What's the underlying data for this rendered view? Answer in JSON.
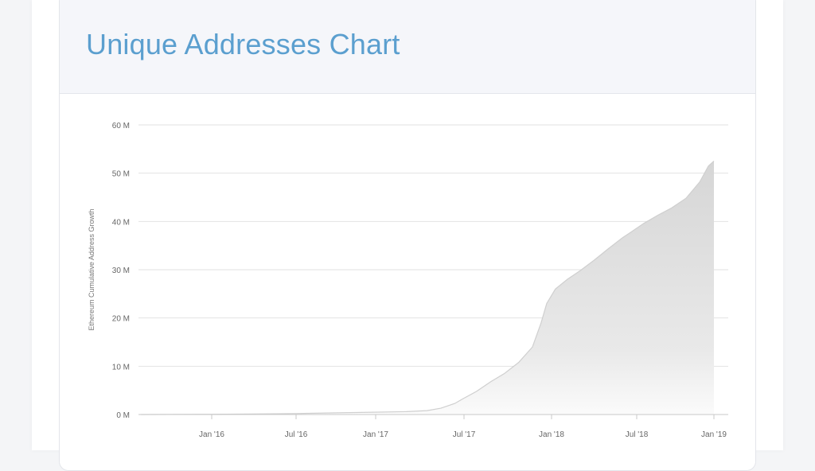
{
  "card": {
    "title": "Unique Addresses Chart"
  },
  "chart_data": {
    "type": "area",
    "title": "",
    "xlabel": "",
    "ylabel": "Ethereum Cumulative Address Growth",
    "ylim": [
      0,
      60
    ],
    "y_unit": "M",
    "y_ticks": [
      {
        "value": 0,
        "label": "0 M"
      },
      {
        "value": 10,
        "label": "10 M"
      },
      {
        "value": 20,
        "label": "20 M"
      },
      {
        "value": 30,
        "label": "30 M"
      },
      {
        "value": 40,
        "label": "40 M"
      },
      {
        "value": 50,
        "label": "50 M"
      },
      {
        "value": 60,
        "label": "60 M"
      }
    ],
    "x_ticks": [
      "Jan '16",
      "Jul '16",
      "Jan '17",
      "Jul '17",
      "Jan '18",
      "Jul '18",
      "Jan '19"
    ],
    "grid": true,
    "fill_color": "#dcdcdc",
    "line_color": "#cfcfcf",
    "grid_color": "#e2e2e2",
    "series": [
      {
        "points": [
          {
            "x": "2015-07-30",
            "y": 0.0
          },
          {
            "x": "2015-10-01",
            "y": 0.02
          },
          {
            "x": "2016-01-01",
            "y": 0.05
          },
          {
            "x": "2016-04-01",
            "y": 0.1
          },
          {
            "x": "2016-07-01",
            "y": 0.2
          },
          {
            "x": "2016-10-01",
            "y": 0.35
          },
          {
            "x": "2017-01-01",
            "y": 0.5
          },
          {
            "x": "2017-03-01",
            "y": 0.6
          },
          {
            "x": "2017-04-15",
            "y": 0.8
          },
          {
            "x": "2017-05-15",
            "y": 1.3
          },
          {
            "x": "2017-06-15",
            "y": 2.3
          },
          {
            "x": "2017-07-01",
            "y": 3.2
          },
          {
            "x": "2017-08-01",
            "y": 4.8
          },
          {
            "x": "2017-09-01",
            "y": 6.8
          },
          {
            "x": "2017-10-01",
            "y": 8.5
          },
          {
            "x": "2017-11-01",
            "y": 10.8
          },
          {
            "x": "2017-12-01",
            "y": 14.0
          },
          {
            "x": "2017-12-20",
            "y": 19.0
          },
          {
            "x": "2018-01-01",
            "y": 23.0
          },
          {
            "x": "2018-01-20",
            "y": 26.0
          },
          {
            "x": "2018-02-15",
            "y": 28.0
          },
          {
            "x": "2018-03-15",
            "y": 29.8
          },
          {
            "x": "2018-04-15",
            "y": 32.0
          },
          {
            "x": "2018-05-15",
            "y": 34.3
          },
          {
            "x": "2018-06-15",
            "y": 36.6
          },
          {
            "x": "2018-07-01",
            "y": 37.6
          },
          {
            "x": "2018-08-01",
            "y": 39.6
          },
          {
            "x": "2018-09-01",
            "y": 41.3
          },
          {
            "x": "2018-10-01",
            "y": 42.8
          },
          {
            "x": "2018-11-01",
            "y": 44.8
          },
          {
            "x": "2018-12-01",
            "y": 48.2
          },
          {
            "x": "2018-12-20",
            "y": 51.5
          },
          {
            "x": "2019-01-01",
            "y": 52.5
          }
        ]
      }
    ]
  }
}
